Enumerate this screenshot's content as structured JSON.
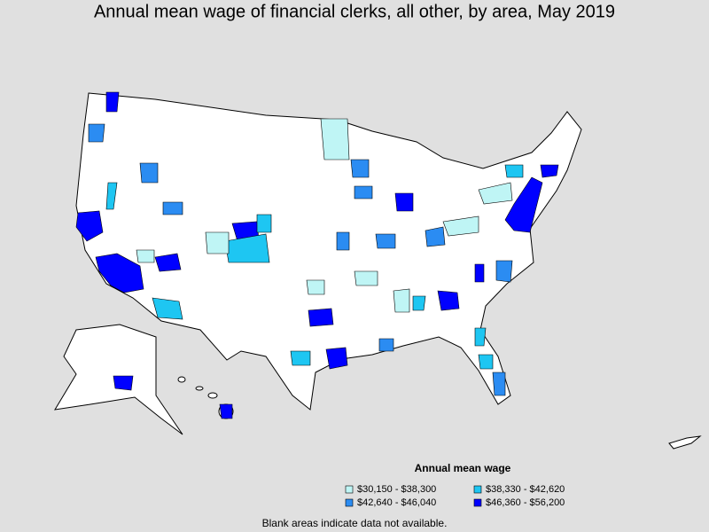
{
  "title": "Annual mean wage of financial clerks, all other, by area, May 2019",
  "legend": {
    "title": "Annual mean wage",
    "items": [
      {
        "label": "$30,150 - $38,300",
        "color": "#bff5f5"
      },
      {
        "label": "$38,330 - $42,620",
        "color": "#1ec6f2"
      },
      {
        "label": "$42,640 - $46,040",
        "color": "#2b8cf2"
      },
      {
        "label": "$46,360 - $56,200",
        "color": "#0000ff"
      }
    ]
  },
  "footnote": "Blank areas indicate data not available."
}
